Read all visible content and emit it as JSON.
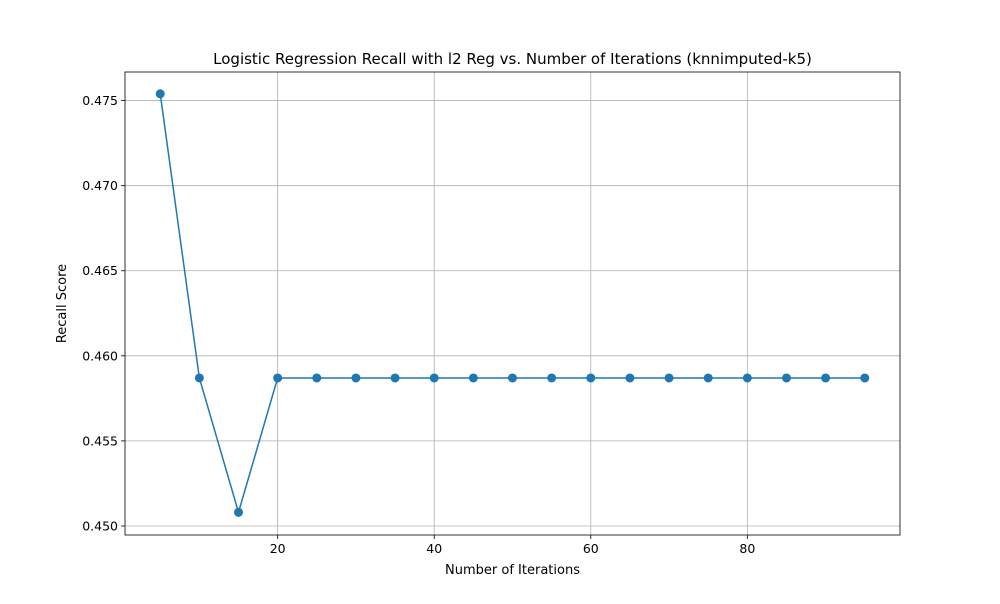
{
  "chart_data": {
    "type": "line",
    "title": "Logistic Regression Recall with l2 Reg vs. Number of Iterations (knnimputed-k5)",
    "xlabel": "Number of Iterations",
    "ylabel": "Recall Score",
    "xlim": [
      0.5,
      99.5
    ],
    "ylim": [
      0.44947,
      0.47668
    ],
    "xticks": [
      20,
      40,
      60,
      80
    ],
    "yticks": [
      0.45,
      0.455,
      0.46,
      0.465,
      0.47,
      0.475
    ],
    "xtick_labels": [
      "20",
      "40",
      "60",
      "80"
    ],
    "ytick_labels": [
      "0.450",
      "0.455",
      "0.460",
      "0.465",
      "0.470",
      "0.475"
    ],
    "grid": true,
    "series": [
      {
        "color": "#1f77b4",
        "marker": "circle",
        "x": [
          5,
          10,
          15,
          20,
          25,
          30,
          35,
          40,
          45,
          50,
          55,
          60,
          65,
          70,
          75,
          80,
          85,
          90,
          95
        ],
        "y": [
          0.4754,
          0.4587,
          0.4508,
          0.4587,
          0.4587,
          0.4587,
          0.4587,
          0.4587,
          0.4587,
          0.4587,
          0.4587,
          0.4587,
          0.4587,
          0.4587,
          0.4587,
          0.4587,
          0.4587,
          0.4587,
          0.4587
        ]
      }
    ]
  }
}
